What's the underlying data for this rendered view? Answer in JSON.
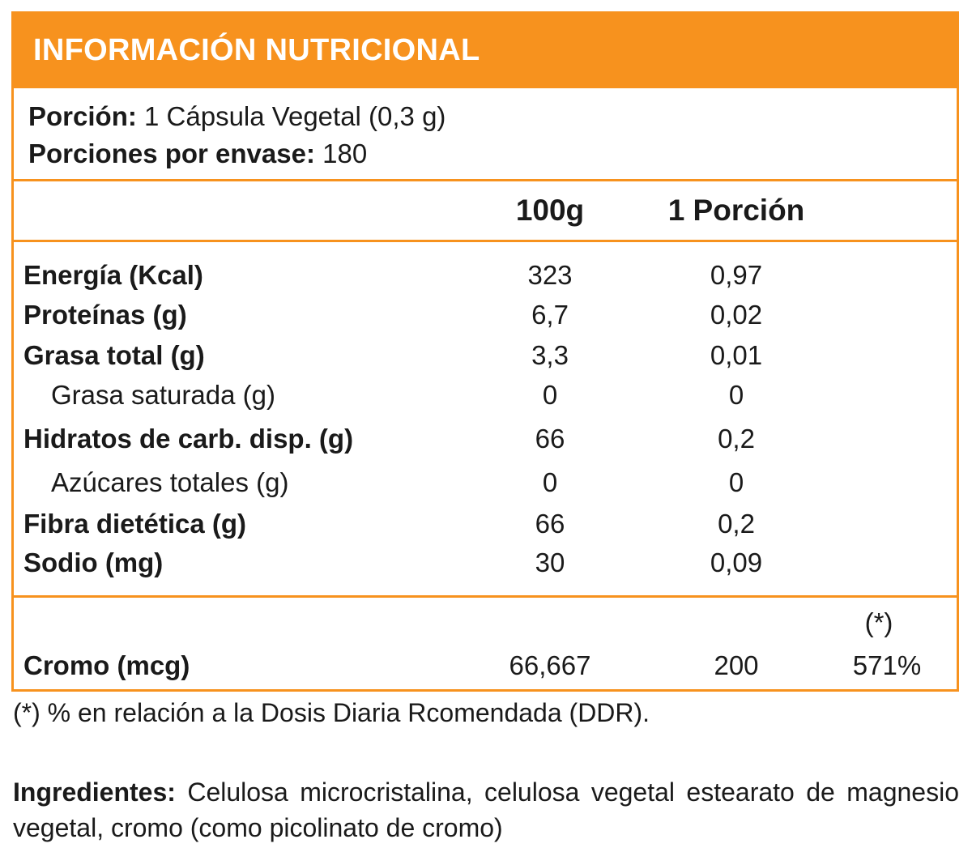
{
  "header": {
    "title": "INFORMACIÓN NUTRICIONAL"
  },
  "serving": {
    "portion_label": "Porción:",
    "portion_value": "1 Cápsula Vegetal (0,3 g)",
    "per_pack_label": "Porciones por envase:",
    "per_pack_value": "180"
  },
  "columns": {
    "per100": "100g",
    "per_portion": "1 Porción"
  },
  "rows": [
    {
      "label": "Energía (Kcal)",
      "per100": "323",
      "per_portion": "0,97"
    },
    {
      "label": "Proteínas (g)",
      "per100": "6,7",
      "per_portion": "0,02"
    },
    {
      "label": "Grasa total (g)",
      "per100": "3,3",
      "per_portion": "0,01"
    },
    {
      "label": "Grasa saturada (g)",
      "per100": "0",
      "per_portion": "0"
    },
    {
      "label": "Hidratos de carb. disp. (g)",
      "per100": "66",
      "per_portion": "0,2"
    },
    {
      "label": "Azúcares totales (g)",
      "per100": "0",
      "per_portion": "0"
    },
    {
      "label": "Fibra dietética (g)",
      "per100": "66",
      "per_portion": "0,2"
    },
    {
      "label": "Sodio (mg)",
      "per100": "30",
      "per_portion": "0,09"
    }
  ],
  "mineral": {
    "ddr_marker": "(*)",
    "label": "Cromo (mcg)",
    "per100": "66,667",
    "per_portion": "200",
    "ddr_percent": "571%"
  },
  "footnote": "(*) % en relación a la Dosis Diaria Rcomendada (DDR).",
  "ingredients": {
    "label": "Ingredientes:",
    "text": "Celulosa microcristalina, celulosa vegetal estearato de magnesio vegetal, cromo (como picolinato de cromo)"
  }
}
